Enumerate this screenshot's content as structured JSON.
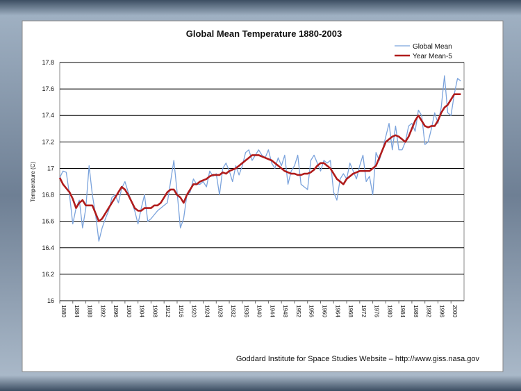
{
  "chart_data": {
    "type": "line",
    "title": "Global Mean Temperature 1880-2003",
    "y_label": "Temperature (C)",
    "source": "Goddard Institute for Space Studies Website – http://www.giss.nasa.gov",
    "x": [
      1880,
      1881,
      1882,
      1883,
      1884,
      1885,
      1886,
      1887,
      1888,
      1889,
      1890,
      1891,
      1892,
      1893,
      1894,
      1895,
      1896,
      1897,
      1898,
      1899,
      1900,
      1901,
      1902,
      1903,
      1904,
      1905,
      1906,
      1907,
      1908,
      1909,
      1910,
      1911,
      1912,
      1913,
      1914,
      1915,
      1916,
      1917,
      1918,
      1919,
      1920,
      1921,
      1922,
      1923,
      1924,
      1925,
      1926,
      1927,
      1928,
      1929,
      1930,
      1931,
      1932,
      1933,
      1934,
      1935,
      1936,
      1937,
      1938,
      1939,
      1940,
      1941,
      1942,
      1943,
      1944,
      1945,
      1946,
      1947,
      1948,
      1949,
      1950,
      1951,
      1952,
      1953,
      1954,
      1955,
      1956,
      1957,
      1958,
      1959,
      1960,
      1961,
      1962,
      1963,
      1964,
      1965,
      1966,
      1967,
      1968,
      1969,
      1970,
      1971,
      1972,
      1973,
      1974,
      1975,
      1976,
      1977,
      1978,
      1979,
      1980,
      1981,
      1982,
      1983,
      1984,
      1985,
      1986,
      1987,
      1988,
      1989,
      1990,
      1991,
      1992,
      1993,
      1994,
      1995,
      1996,
      1997,
      1998,
      1999,
      2000,
      2001,
      2002,
      2003
    ],
    "series": [
      {
        "name": "Global Mean",
        "color": "#7ba3dc",
        "width": 1.3,
        "values": [
          16.93,
          16.98,
          16.97,
          16.8,
          16.58,
          16.7,
          16.76,
          16.55,
          16.7,
          17.02,
          16.8,
          16.65,
          16.45,
          16.55,
          16.62,
          16.68,
          16.78,
          16.8,
          16.74,
          16.85,
          16.9,
          16.82,
          16.75,
          16.68,
          16.58,
          16.7,
          16.8,
          16.6,
          16.62,
          16.65,
          16.68,
          16.7,
          16.72,
          16.74,
          16.9,
          17.06,
          16.82,
          16.55,
          16.62,
          16.8,
          16.82,
          16.92,
          16.88,
          16.88,
          16.9,
          16.86,
          16.98,
          16.94,
          16.96,
          16.8,
          17.0,
          17.04,
          16.98,
          16.9,
          17.02,
          16.95,
          17.02,
          17.12,
          17.14,
          17.06,
          17.1,
          17.14,
          17.1,
          17.08,
          17.14,
          17.04,
          17.0,
          17.08,
          17.02,
          17.1,
          16.88,
          16.98,
          17.02,
          17.1,
          16.88,
          16.86,
          16.84,
          17.06,
          17.1,
          17.04,
          16.98,
          17.06,
          17.04,
          17.06,
          16.82,
          16.76,
          16.92,
          16.96,
          16.92,
          17.04,
          16.98,
          16.92,
          17.02,
          17.1,
          16.9,
          16.94,
          16.8,
          17.12,
          17.06,
          17.14,
          17.24,
          17.34,
          17.14,
          17.32,
          17.14,
          17.14,
          17.2,
          17.32,
          17.34,
          17.28,
          17.44,
          17.4,
          17.18,
          17.2,
          17.3,
          17.42,
          17.34,
          17.46,
          17.7,
          17.42,
          17.4,
          17.56,
          17.68,
          17.66
        ]
      },
      {
        "name": "Year Mean-5",
        "color": "#b01c1c",
        "width": 2.6,
        "values": [
          16.93,
          16.88,
          16.85,
          16.82,
          16.77,
          16.7,
          16.74,
          16.76,
          16.72,
          16.72,
          16.72,
          16.66,
          16.6,
          16.62,
          16.66,
          16.7,
          16.74,
          16.78,
          16.82,
          16.86,
          16.84,
          16.8,
          16.75,
          16.7,
          16.68,
          16.68,
          16.7,
          16.7,
          16.7,
          16.72,
          16.72,
          16.74,
          16.78,
          16.82,
          16.84,
          16.84,
          16.8,
          16.78,
          16.74,
          16.8,
          16.84,
          16.88,
          16.88,
          16.9,
          16.91,
          16.92,
          16.94,
          16.95,
          16.95,
          16.95,
          16.97,
          16.96,
          16.98,
          16.99,
          17.0,
          17.02,
          17.04,
          17.06,
          17.08,
          17.1,
          17.1,
          17.1,
          17.09,
          17.08,
          17.07,
          17.06,
          17.04,
          17.02,
          17.0,
          16.98,
          16.97,
          16.96,
          16.96,
          16.95,
          16.95,
          16.96,
          16.96,
          16.97,
          16.99,
          17.02,
          17.04,
          17.04,
          17.02,
          17.0,
          16.96,
          16.92,
          16.9,
          16.88,
          16.92,
          16.94,
          16.96,
          16.97,
          16.98,
          16.98,
          16.98,
          16.98,
          17.0,
          17.02,
          17.08,
          17.14,
          17.2,
          17.22,
          17.24,
          17.25,
          17.24,
          17.22,
          17.2,
          17.24,
          17.3,
          17.36,
          17.4,
          17.36,
          17.32,
          17.31,
          17.32,
          17.32,
          17.36,
          17.42,
          17.46,
          17.48,
          17.52,
          17.56,
          17.56,
          17.56
        ]
      }
    ],
    "xlim": [
      1880,
      2004
    ],
    "xticks": [
      1880,
      1884,
      1888,
      1892,
      1896,
      1900,
      1904,
      1908,
      1912,
      1916,
      1920,
      1924,
      1928,
      1932,
      1936,
      1940,
      1944,
      1948,
      1952,
      1956,
      1960,
      1964,
      1968,
      1972,
      1976,
      1980,
      1984,
      1988,
      1992,
      1996,
      2000
    ],
    "ylim": [
      16,
      17.8
    ],
    "yticks": [
      16,
      16.2,
      16.4,
      16.6,
      16.8,
      17,
      17.2,
      17.4,
      17.6,
      17.8
    ],
    "grid": true,
    "legend": "upper right"
  }
}
